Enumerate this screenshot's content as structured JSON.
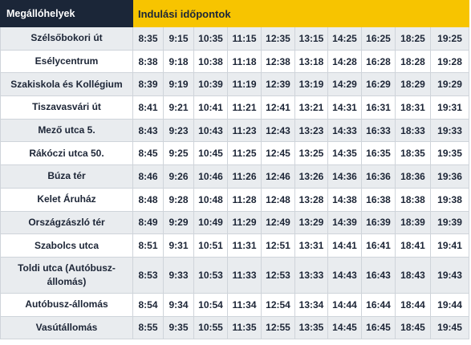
{
  "header": {
    "stops_label": "Megállóhelyek",
    "times_label": "Indulási időpontok"
  },
  "rows": [
    {
      "stop": "Szélsőbokori út",
      "times": [
        "8:35",
        "9:15",
        "10:35",
        "11:15",
        "12:35",
        "13:15",
        "14:25",
        "16:25",
        "18:25",
        "19:25"
      ]
    },
    {
      "stop": "Esélycentrum",
      "times": [
        "8:38",
        "9:18",
        "10:38",
        "11:18",
        "12:38",
        "13:18",
        "14:28",
        "16:28",
        "18:28",
        "19:28"
      ]
    },
    {
      "stop": "Szakiskola és Kollégium",
      "times": [
        "8:39",
        "9:19",
        "10:39",
        "11:19",
        "12:39",
        "13:19",
        "14:29",
        "16:29",
        "18:29",
        "19:29"
      ]
    },
    {
      "stop": "Tiszavasvári út",
      "times": [
        "8:41",
        "9:21",
        "10:41",
        "11:21",
        "12:41",
        "13:21",
        "14:31",
        "16:31",
        "18:31",
        "19:31"
      ]
    },
    {
      "stop": "Mező utca 5.",
      "times": [
        "8:43",
        "9:23",
        "10:43",
        "11:23",
        "12:43",
        "13:23",
        "14:33",
        "16:33",
        "18:33",
        "19:33"
      ]
    },
    {
      "stop": "Rákóczi utca 50.",
      "times": [
        "8:45",
        "9:25",
        "10:45",
        "11:25",
        "12:45",
        "13:25",
        "14:35",
        "16:35",
        "18:35",
        "19:35"
      ]
    },
    {
      "stop": "Búza tér",
      "times": [
        "8:46",
        "9:26",
        "10:46",
        "11:26",
        "12:46",
        "13:26",
        "14:36",
        "16:36",
        "18:36",
        "19:36"
      ]
    },
    {
      "stop": "Kelet Áruház",
      "times": [
        "8:48",
        "9:28",
        "10:48",
        "11:28",
        "12:48",
        "13:28",
        "14:38",
        "16:38",
        "18:38",
        "19:38"
      ]
    },
    {
      "stop": "Országzászló tér",
      "times": [
        "8:49",
        "9:29",
        "10:49",
        "11:29",
        "12:49",
        "13:29",
        "14:39",
        "16:39",
        "18:39",
        "19:39"
      ]
    },
    {
      "stop": "Szabolcs utca",
      "times": [
        "8:51",
        "9:31",
        "10:51",
        "11:31",
        "12:51",
        "13:31",
        "14:41",
        "16:41",
        "18:41",
        "19:41"
      ]
    },
    {
      "stop": "Toldi utca (Autóbusz-állomás)",
      "times": [
        "8:53",
        "9:33",
        "10:53",
        "11:33",
        "12:53",
        "13:33",
        "14:43",
        "16:43",
        "18:43",
        "19:43"
      ]
    },
    {
      "stop": "Autóbusz-állomás",
      "times": [
        "8:54",
        "9:34",
        "10:54",
        "11:34",
        "12:54",
        "13:34",
        "14:44",
        "16:44",
        "18:44",
        "19:44"
      ]
    },
    {
      "stop": "Vasútállomás",
      "times": [
        "8:55",
        "9:35",
        "10:55",
        "11:35",
        "12:55",
        "13:35",
        "14:45",
        "16:45",
        "18:45",
        "19:45"
      ]
    }
  ],
  "colors": {
    "header_dark": "#1b2638",
    "header_accent": "#f7c400",
    "row_alt": "#e9ecef"
  }
}
